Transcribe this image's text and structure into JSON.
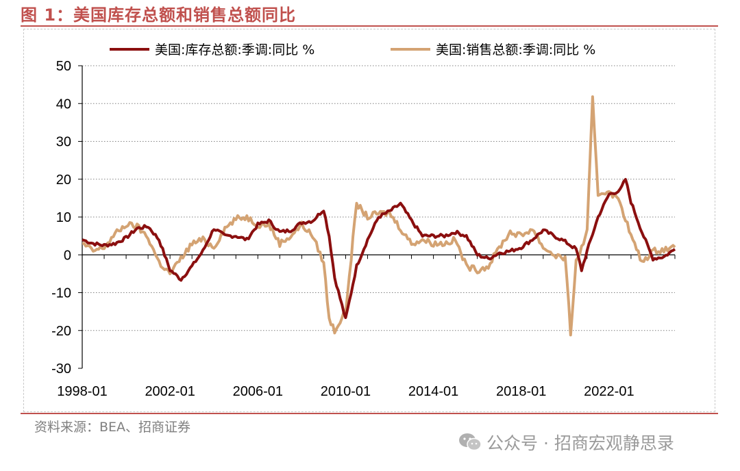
{
  "figure": {
    "title": "图 1：美国库存总额和销售总额同比",
    "source": "资料来源：BEA、招商证券",
    "watermark": "公众号 · 招商宏观静思录"
  },
  "colors": {
    "accent": "#c0504d",
    "inventory": "#8b0f0f",
    "sales": "#d4a373"
  },
  "chart_data": {
    "type": "line",
    "title": "",
    "xlabel": "",
    "ylabel": "",
    "ylim": [
      -30,
      50
    ],
    "yticks": [
      -30,
      -20,
      -10,
      0,
      10,
      20,
      30,
      40,
      50
    ],
    "xlim": [
      "1998-01",
      "2025-01"
    ],
    "xticks": [
      "1998-01",
      "2002-01",
      "2006-01",
      "2010-01",
      "2014-01",
      "2018-01",
      "2022-01"
    ],
    "grid": "horizontal dotted",
    "legend": "top",
    "series": [
      {
        "name": "美国:库存总额:季调:同比 %",
        "color": "#8b0f0f",
        "points": [
          [
            "1998-01",
            4
          ],
          [
            "1998-07",
            3
          ],
          [
            "1999-01",
            2.5
          ],
          [
            "1999-07",
            3
          ],
          [
            "2000-01",
            4.5
          ],
          [
            "2000-07",
            7
          ],
          [
            "2001-01",
            7.5
          ],
          [
            "2001-07",
            4
          ],
          [
            "2002-01",
            -4
          ],
          [
            "2002-07",
            -6.5
          ],
          [
            "2003-01",
            -3
          ],
          [
            "2003-07",
            1
          ],
          [
            "2004-01",
            7
          ],
          [
            "2004-07",
            5
          ],
          [
            "2005-01",
            5
          ],
          [
            "2005-07",
            4
          ],
          [
            "2006-01",
            8
          ],
          [
            "2006-07",
            9
          ],
          [
            "2007-01",
            6
          ],
          [
            "2007-07",
            6.5
          ],
          [
            "2008-01",
            8.5
          ],
          [
            "2008-07",
            9
          ],
          [
            "2009-01",
            12
          ],
          [
            "2009-04",
            5
          ],
          [
            "2009-07",
            -6
          ],
          [
            "2010-01",
            -17
          ],
          [
            "2010-07",
            -3
          ],
          [
            "2011-01",
            4
          ],
          [
            "2011-07",
            10
          ],
          [
            "2012-01",
            11.5
          ],
          [
            "2012-07",
            13.5
          ],
          [
            "2013-01",
            9
          ],
          [
            "2013-07",
            5
          ],
          [
            "2014-01",
            5
          ],
          [
            "2014-07",
            5
          ],
          [
            "2015-01",
            6
          ],
          [
            "2015-07",
            5
          ],
          [
            "2016-01",
            0
          ],
          [
            "2016-07",
            -1
          ],
          [
            "2017-01",
            0.5
          ],
          [
            "2017-07",
            1
          ],
          [
            "2018-01",
            2
          ],
          [
            "2018-07",
            4
          ],
          [
            "2019-01",
            6.5
          ],
          [
            "2019-07",
            5
          ],
          [
            "2020-01",
            3.5
          ],
          [
            "2020-07",
            1.5
          ],
          [
            "2020-10",
            -4
          ],
          [
            "2021-01",
            1
          ],
          [
            "2021-07",
            10
          ],
          [
            "2022-01",
            16
          ],
          [
            "2022-07",
            17
          ],
          [
            "2022-10",
            20
          ],
          [
            "2023-01",
            14
          ],
          [
            "2023-07",
            6
          ],
          [
            "2024-01",
            -1
          ],
          [
            "2024-07",
            -0.5
          ],
          [
            "2025-01",
            1.5
          ]
        ]
      },
      {
        "name": "美国:销售总额:季调:同比 %",
        "color": "#d4a373",
        "points": [
          [
            "1998-01",
            3
          ],
          [
            "1998-07",
            1
          ],
          [
            "1999-01",
            2
          ],
          [
            "1999-07",
            5.5
          ],
          [
            "2000-01",
            8
          ],
          [
            "2000-07",
            7.5
          ],
          [
            "2001-01",
            4.5
          ],
          [
            "2001-07",
            -2
          ],
          [
            "2002-01",
            -5
          ],
          [
            "2002-07",
            -1
          ],
          [
            "2003-01",
            3
          ],
          [
            "2003-07",
            4
          ],
          [
            "2004-01",
            2
          ],
          [
            "2004-07",
            7
          ],
          [
            "2005-01",
            9.5
          ],
          [
            "2005-07",
            10
          ],
          [
            "2006-01",
            8
          ],
          [
            "2006-07",
            8
          ],
          [
            "2007-01",
            3
          ],
          [
            "2007-07",
            5
          ],
          [
            "2008-01",
            8
          ],
          [
            "2008-07",
            5
          ],
          [
            "2009-01",
            -2
          ],
          [
            "2009-04",
            -17
          ],
          [
            "2009-07",
            -20
          ],
          [
            "2010-01",
            -15
          ],
          [
            "2010-07",
            13.5
          ],
          [
            "2011-01",
            10
          ],
          [
            "2011-07",
            11
          ],
          [
            "2012-01",
            11
          ],
          [
            "2012-07",
            7
          ],
          [
            "2013-01",
            3
          ],
          [
            "2013-07",
            4
          ],
          [
            "2014-01",
            3
          ],
          [
            "2014-07",
            3
          ],
          [
            "2015-01",
            4
          ],
          [
            "2015-07",
            -3
          ],
          [
            "2016-01",
            -4
          ],
          [
            "2016-07",
            -3
          ],
          [
            "2017-01",
            2
          ],
          [
            "2017-07",
            6
          ],
          [
            "2018-01",
            5
          ],
          [
            "2018-07",
            7
          ],
          [
            "2019-01",
            2
          ],
          [
            "2019-07",
            0
          ],
          [
            "2020-01",
            -1
          ],
          [
            "2020-04",
            -20.5
          ],
          [
            "2020-07",
            -2
          ],
          [
            "2021-01",
            6
          ],
          [
            "2021-04",
            41
          ],
          [
            "2021-07",
            16
          ],
          [
            "2022-01",
            17
          ],
          [
            "2022-07",
            14
          ],
          [
            "2023-01",
            5
          ],
          [
            "2023-07",
            -2
          ],
          [
            "2024-01",
            1
          ],
          [
            "2024-07",
            1.5
          ],
          [
            "2025-01",
            2
          ]
        ]
      }
    ]
  }
}
